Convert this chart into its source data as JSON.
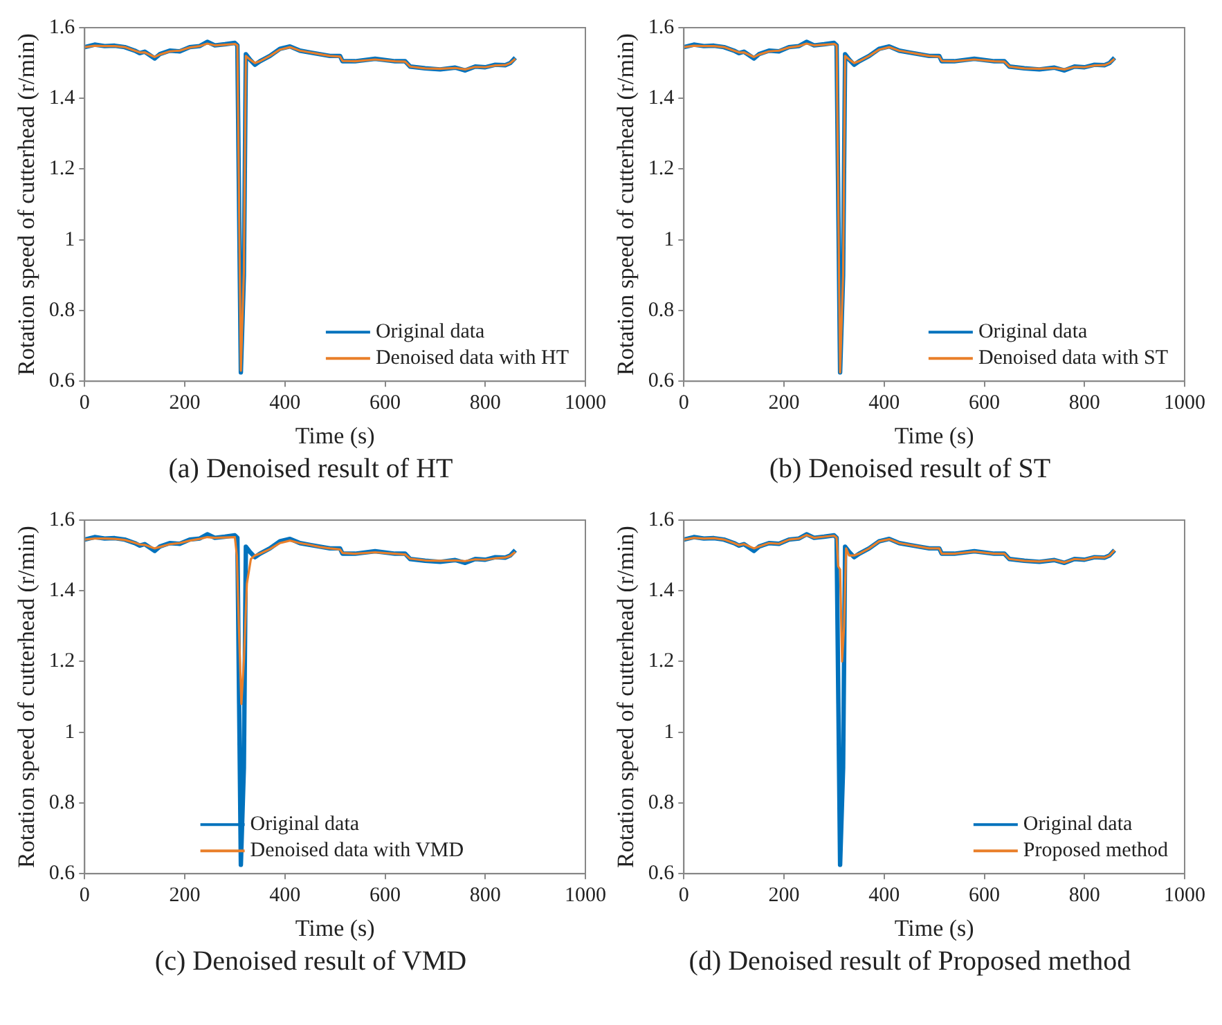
{
  "chart_data": [
    {
      "type": "line",
      "title": "(a) Denoised result of HT",
      "xlabel": "Time (s)",
      "ylabel": "Rotation speed of cutterhead (r/min)",
      "xlim": [
        0,
        1000
      ],
      "xticks": [
        0,
        200,
        400,
        600,
        800,
        1000
      ],
      "ylim": [
        0.6,
        1.6
      ],
      "yticks": [
        0.6,
        0.8,
        1,
        1.2,
        1.4,
        1.6
      ],
      "grid": false,
      "legend": "bottom right",
      "series": [
        {
          "name": "Original data",
          "color": "#0072bd",
          "x": [
            0,
            20,
            40,
            60,
            80,
            100,
            110,
            120,
            140,
            150,
            170,
            190,
            210,
            230,
            245,
            260,
            280,
            300,
            305,
            312,
            318,
            322,
            330,
            340,
            350,
            370,
            390,
            410,
            430,
            450,
            470,
            490,
            510,
            515,
            540,
            580,
            620,
            640,
            650,
            680,
            710,
            740,
            760,
            780,
            800,
            820,
            840,
            850,
            860
          ],
          "values": [
            1.545,
            1.552,
            1.548,
            1.549,
            1.545,
            1.535,
            1.528,
            1.532,
            1.513,
            1.525,
            1.535,
            1.533,
            1.545,
            1.548,
            1.56,
            1.55,
            1.553,
            1.557,
            1.55,
            0.625,
            0.9,
            1.525,
            1.51,
            1.495,
            1.505,
            1.52,
            1.54,
            1.547,
            1.535,
            1.53,
            1.525,
            1.52,
            1.52,
            1.505,
            1.505,
            1.512,
            1.505,
            1.505,
            1.49,
            1.485,
            1.482,
            1.487,
            1.479,
            1.49,
            1.488,
            1.495,
            1.494,
            1.5,
            1.515
          ]
        },
        {
          "name": "Denoised data with HT",
          "color": "#e97f2a",
          "x": [
            0,
            20,
            40,
            60,
            80,
            100,
            110,
            120,
            140,
            150,
            170,
            190,
            210,
            230,
            245,
            260,
            280,
            300,
            305,
            312,
            318,
            322,
            330,
            340,
            350,
            370,
            390,
            410,
            430,
            450,
            470,
            490,
            510,
            515,
            540,
            580,
            620,
            640,
            650,
            680,
            710,
            740,
            760,
            780,
            800,
            820,
            840,
            850,
            860
          ],
          "values": [
            1.545,
            1.549,
            1.548,
            1.548,
            1.545,
            1.535,
            1.53,
            1.53,
            1.517,
            1.524,
            1.533,
            1.535,
            1.544,
            1.548,
            1.555,
            1.55,
            1.552,
            1.554,
            1.55,
            0.63,
            0.91,
            1.52,
            1.51,
            1.5,
            1.505,
            1.52,
            1.538,
            1.545,
            1.535,
            1.53,
            1.525,
            1.52,
            1.518,
            1.506,
            1.505,
            1.51,
            1.505,
            1.504,
            1.49,
            1.485,
            1.484,
            1.486,
            1.482,
            1.489,
            1.488,
            1.493,
            1.494,
            1.5,
            1.512
          ]
        }
      ]
    },
    {
      "type": "line",
      "title": "(b) Denoised result of ST",
      "xlabel": "Time (s)",
      "ylabel": "Rotation speed of cutterhead (r/min)",
      "xlim": [
        0,
        1000
      ],
      "xticks": [
        0,
        200,
        400,
        600,
        800,
        1000
      ],
      "ylim": [
        0.6,
        1.6
      ],
      "yticks": [
        0.6,
        0.8,
        1,
        1.2,
        1.4,
        1.6
      ],
      "grid": false,
      "legend": "bottom right",
      "series": [
        {
          "name": "Original data",
          "color": "#0072bd",
          "x": [
            0,
            20,
            40,
            60,
            80,
            100,
            110,
            120,
            140,
            150,
            170,
            190,
            210,
            230,
            245,
            260,
            280,
            300,
            305,
            312,
            318,
            322,
            330,
            340,
            350,
            370,
            390,
            410,
            430,
            450,
            470,
            490,
            510,
            515,
            540,
            580,
            620,
            640,
            650,
            680,
            710,
            740,
            760,
            780,
            800,
            820,
            840,
            850,
            860
          ],
          "values": [
            1.545,
            1.552,
            1.548,
            1.549,
            1.545,
            1.535,
            1.528,
            1.532,
            1.513,
            1.525,
            1.535,
            1.533,
            1.545,
            1.548,
            1.56,
            1.55,
            1.553,
            1.557,
            1.55,
            0.625,
            0.9,
            1.525,
            1.51,
            1.495,
            1.505,
            1.52,
            1.54,
            1.547,
            1.535,
            1.53,
            1.525,
            1.52,
            1.52,
            1.505,
            1.505,
            1.512,
            1.505,
            1.505,
            1.49,
            1.485,
            1.482,
            1.487,
            1.479,
            1.49,
            1.488,
            1.495,
            1.494,
            1.5,
            1.515
          ]
        },
        {
          "name": "Denoised data with ST",
          "color": "#e97f2a",
          "x": [
            0,
            20,
            40,
            60,
            80,
            100,
            110,
            120,
            140,
            150,
            170,
            190,
            210,
            230,
            245,
            260,
            280,
            300,
            305,
            312,
            318,
            322,
            330,
            340,
            350,
            370,
            390,
            410,
            430,
            450,
            470,
            490,
            510,
            515,
            540,
            580,
            620,
            640,
            650,
            680,
            710,
            740,
            760,
            780,
            800,
            820,
            840,
            850,
            860
          ],
          "values": [
            1.545,
            1.549,
            1.548,
            1.548,
            1.545,
            1.535,
            1.53,
            1.53,
            1.517,
            1.524,
            1.533,
            1.535,
            1.544,
            1.548,
            1.555,
            1.55,
            1.552,
            1.554,
            1.55,
            0.625,
            0.9,
            1.52,
            1.51,
            1.5,
            1.505,
            1.52,
            1.538,
            1.545,
            1.535,
            1.53,
            1.525,
            1.52,
            1.518,
            1.506,
            1.505,
            1.51,
            1.505,
            1.504,
            1.49,
            1.485,
            1.484,
            1.486,
            1.482,
            1.489,
            1.488,
            1.493,
            1.494,
            1.5,
            1.512
          ]
        }
      ]
    },
    {
      "type": "line",
      "title": "(c) Denoised result of VMD",
      "xlabel": "Time (s)",
      "ylabel": "Rotation speed of cutterhead (r/min)",
      "xlim": [
        0,
        1000
      ],
      "xticks": [
        0,
        200,
        400,
        600,
        800,
        1000
      ],
      "ylim": [
        0.6,
        1.6
      ],
      "yticks": [
        0.6,
        0.8,
        1,
        1.2,
        1.4,
        1.6
      ],
      "grid": false,
      "legend": "bottom",
      "series": [
        {
          "name": "Original data",
          "color": "#0072bd",
          "x": [
            0,
            20,
            40,
            60,
            80,
            100,
            110,
            120,
            140,
            150,
            170,
            190,
            210,
            230,
            245,
            260,
            280,
            300,
            305,
            312,
            318,
            322,
            330,
            340,
            350,
            370,
            390,
            410,
            430,
            450,
            470,
            490,
            510,
            515,
            540,
            580,
            620,
            640,
            650,
            680,
            710,
            740,
            760,
            780,
            800,
            820,
            840,
            850,
            860
          ],
          "values": [
            1.545,
            1.552,
            1.548,
            1.549,
            1.545,
            1.535,
            1.528,
            1.532,
            1.513,
            1.525,
            1.535,
            1.533,
            1.545,
            1.548,
            1.56,
            1.55,
            1.553,
            1.557,
            1.55,
            0.625,
            0.9,
            1.525,
            1.51,
            1.495,
            1.505,
            1.52,
            1.54,
            1.547,
            1.535,
            1.53,
            1.525,
            1.52,
            1.52,
            1.505,
            1.505,
            1.512,
            1.505,
            1.505,
            1.49,
            1.485,
            1.482,
            1.487,
            1.479,
            1.49,
            1.488,
            1.495,
            1.494,
            1.5,
            1.515
          ]
        },
        {
          "name": "Denoised data with VMD",
          "color": "#e97f2a",
          "x": [
            0,
            20,
            40,
            60,
            80,
            100,
            110,
            120,
            140,
            150,
            170,
            190,
            210,
            230,
            245,
            260,
            280,
            300,
            304,
            308,
            313,
            318,
            324,
            332,
            340,
            350,
            370,
            390,
            410,
            430,
            450,
            470,
            490,
            510,
            515,
            540,
            580,
            620,
            640,
            650,
            680,
            710,
            740,
            760,
            780,
            800,
            820,
            840,
            850,
            860
          ],
          "values": [
            1.545,
            1.548,
            1.548,
            1.547,
            1.544,
            1.536,
            1.531,
            1.53,
            1.52,
            1.524,
            1.532,
            1.535,
            1.542,
            1.547,
            1.552,
            1.55,
            1.551,
            1.552,
            1.5,
            1.3,
            1.08,
            1.2,
            1.42,
            1.49,
            1.5,
            1.505,
            1.518,
            1.535,
            1.542,
            1.535,
            1.53,
            1.524,
            1.52,
            1.517,
            1.507,
            1.505,
            1.509,
            1.505,
            1.503,
            1.491,
            1.486,
            1.485,
            1.486,
            1.484,
            1.489,
            1.488,
            1.492,
            1.494,
            1.499,
            1.51
          ]
        }
      ]
    },
    {
      "type": "line",
      "title": "(d) Denoised result of Proposed method",
      "xlabel": "Time (s)",
      "ylabel": "Rotation speed of cutterhead (r/min)",
      "xlim": [
        0,
        1000
      ],
      "xticks": [
        0,
        200,
        400,
        600,
        800,
        1000
      ],
      "ylim": [
        0.6,
        1.6
      ],
      "yticks": [
        0.6,
        0.8,
        1,
        1.2,
        1.4,
        1.6
      ],
      "grid": false,
      "legend": "bottom right",
      "series": [
        {
          "name": "Original data",
          "color": "#0072bd",
          "x": [
            0,
            20,
            40,
            60,
            80,
            100,
            110,
            120,
            140,
            150,
            170,
            190,
            210,
            230,
            245,
            260,
            280,
            300,
            305,
            312,
            318,
            322,
            330,
            340,
            350,
            370,
            390,
            410,
            430,
            450,
            470,
            490,
            510,
            515,
            540,
            580,
            620,
            640,
            650,
            680,
            710,
            740,
            760,
            780,
            800,
            820,
            840,
            850,
            860
          ],
          "values": [
            1.545,
            1.552,
            1.548,
            1.549,
            1.545,
            1.535,
            1.528,
            1.532,
            1.513,
            1.525,
            1.535,
            1.533,
            1.545,
            1.548,
            1.56,
            1.55,
            1.553,
            1.557,
            1.55,
            0.625,
            0.9,
            1.525,
            1.51,
            1.495,
            1.505,
            1.52,
            1.54,
            1.547,
            1.535,
            1.53,
            1.525,
            1.52,
            1.52,
            1.505,
            1.505,
            1.512,
            1.505,
            1.505,
            1.49,
            1.485,
            1.482,
            1.487,
            1.479,
            1.49,
            1.488,
            1.495,
            1.494,
            1.5,
            1.515
          ]
        },
        {
          "name": "Proposed method",
          "color": "#e97f2a",
          "x": [
            0,
            20,
            40,
            60,
            80,
            100,
            110,
            120,
            140,
            150,
            170,
            190,
            210,
            230,
            245,
            260,
            280,
            300,
            305,
            308,
            312,
            316,
            320,
            324,
            330,
            340,
            350,
            370,
            390,
            410,
            430,
            450,
            470,
            490,
            510,
            515,
            540,
            580,
            620,
            640,
            650,
            680,
            710,
            740,
            760,
            780,
            800,
            820,
            840,
            850,
            860
          ],
          "values": [
            1.545,
            1.55,
            1.548,
            1.549,
            1.545,
            1.535,
            1.529,
            1.532,
            1.52,
            1.525,
            1.535,
            1.533,
            1.545,
            1.548,
            1.558,
            1.55,
            1.553,
            1.556,
            1.55,
            1.47,
            1.46,
            1.2,
            1.3,
            1.52,
            1.5,
            1.5,
            1.505,
            1.52,
            1.54,
            1.546,
            1.535,
            1.53,
            1.525,
            1.52,
            1.52,
            1.505,
            1.505,
            1.511,
            1.505,
            1.505,
            1.49,
            1.485,
            1.483,
            1.487,
            1.48,
            1.49,
            1.488,
            1.495,
            1.494,
            1.5,
            1.515
          ]
        }
      ]
    }
  ]
}
